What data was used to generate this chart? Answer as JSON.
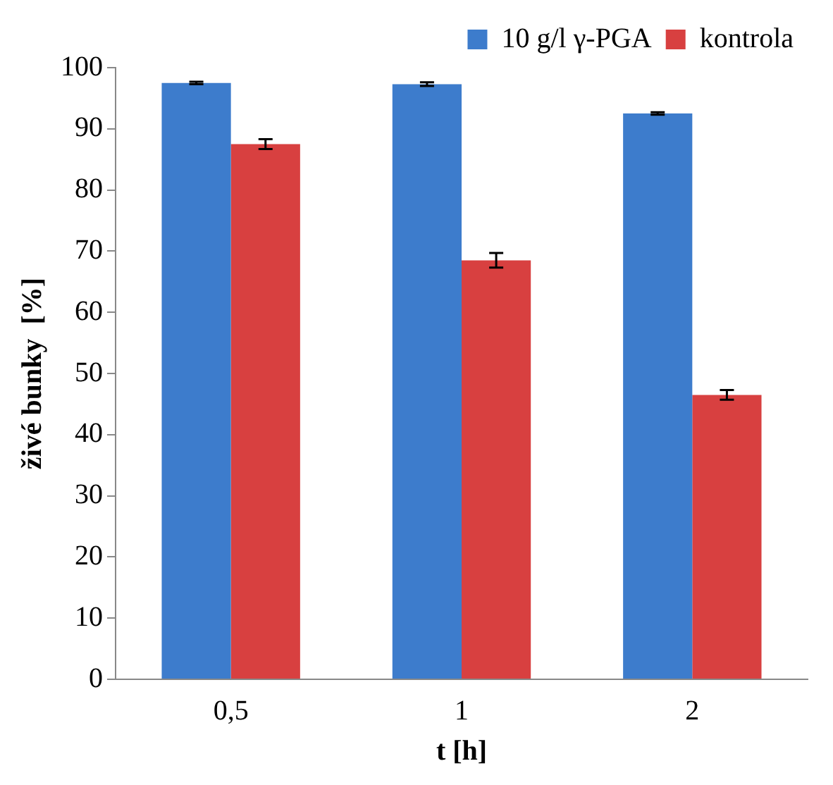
{
  "chart_data": {
    "type": "bar",
    "xlabel": "t [h]",
    "ylabel": "živé bunky  [%]",
    "categories": [
      "0,5",
      "1",
      "2"
    ],
    "series": [
      {
        "name": "10 g/l γ-PGA",
        "color": "#3d7ccc",
        "values": [
          97.5,
          97.3,
          92.5
        ],
        "errors": [
          0.2,
          0.3,
          0.2
        ]
      },
      {
        "name": "kontrola",
        "color": "#d84040",
        "values": [
          87.5,
          68.5,
          46.5
        ],
        "errors": [
          0.8,
          1.2,
          0.8
        ]
      }
    ],
    "ylim": [
      0,
      100
    ],
    "yticks": [
      0,
      10,
      20,
      30,
      40,
      50,
      60,
      70,
      80,
      90,
      100
    ],
    "grid": false,
    "legend": "top right"
  }
}
